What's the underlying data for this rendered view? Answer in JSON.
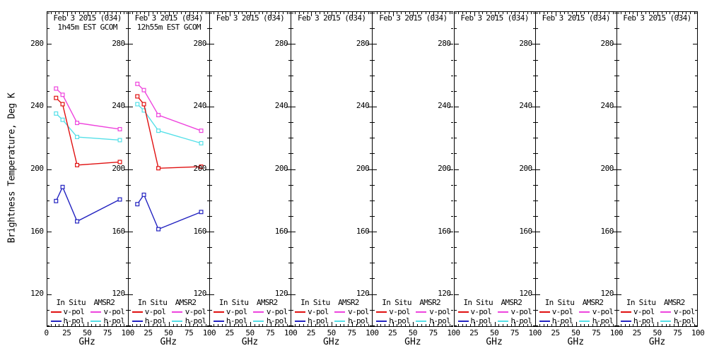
{
  "chart_data": {
    "type": "line",
    "xlabel": "GHz",
    "ylabel": "Brightness Temperature, Deg K",
    "x": [
      10.65,
      18.7,
      36.5,
      89
    ],
    "xlim": [
      0,
      100
    ],
    "ylim": [
      99,
      301
    ],
    "x_major_ticks": [
      0,
      25,
      50,
      75,
      100
    ],
    "x_minor_step": 5,
    "y_major_ticks": [
      280,
      240,
      200,
      160,
      120
    ],
    "y_minor_step": 10,
    "grid": false,
    "series_colors": {
      "insitu_v": "#e01010",
      "insitu_h": "#2222c0",
      "amsr2_v": "#ee44dd",
      "amsr2_h": "#55e0e8"
    },
    "legend": {
      "position": "bottom-inside-each-panel",
      "columns": [
        {
          "header": "In Situ",
          "entries": [
            {
              "label": "v-pol",
              "color_key": "insitu_v"
            },
            {
              "label": "h-pol",
              "color_key": "insitu_h"
            }
          ]
        },
        {
          "header": "AMSR2",
          "entries": [
            {
              "label": "v-pol",
              "color_key": "amsr2_v"
            },
            {
              "label": "h-pol",
              "color_key": "amsr2_h"
            }
          ]
        }
      ]
    },
    "panels": [
      {
        "title": "Feb 3 2015 (034)",
        "subtitle": "1h45m EST GCOM",
        "series": [
          {
            "name": "AMSR2 v-pol",
            "color_key": "amsr2_v",
            "values": [
              252,
              248,
              230,
              226
            ]
          },
          {
            "name": "AMSR2 h-pol",
            "color_key": "amsr2_h",
            "values": [
              236,
              232,
              221,
              219
            ]
          },
          {
            "name": "In Situ v-pol",
            "color_key": "insitu_v",
            "values": [
              246,
              242,
              203,
              205
            ]
          },
          {
            "name": "In Situ h-pol",
            "color_key": "insitu_h",
            "values": [
              180,
              189,
              167,
              181
            ]
          }
        ]
      },
      {
        "title": "Feb 3 2015 (034)",
        "subtitle": "12h55m EST GCOM",
        "series": [
          {
            "name": "AMSR2 v-pol",
            "color_key": "amsr2_v",
            "values": [
              255,
              251,
              235,
              225
            ]
          },
          {
            "name": "AMSR2 h-pol",
            "color_key": "amsr2_h",
            "values": [
              242,
              238,
              225,
              217
            ]
          },
          {
            "name": "In Situ v-pol",
            "color_key": "insitu_v",
            "values": [
              247,
              242,
              201,
              202
            ]
          },
          {
            "name": "In Situ h-pol",
            "color_key": "insitu_h",
            "values": [
              178,
              184,
              162,
              173
            ]
          }
        ]
      },
      {
        "title": "Feb 3 2015 (034)",
        "subtitle": "",
        "series": []
      },
      {
        "title": "Feb 3 2015 (034)",
        "subtitle": "",
        "series": []
      },
      {
        "title": "Feb 3 2015 (034)",
        "subtitle": "",
        "series": []
      },
      {
        "title": "Feb 3 2015 (034)",
        "subtitle": "",
        "series": []
      },
      {
        "title": "Feb 3 2015 (034)",
        "subtitle": "",
        "series": []
      },
      {
        "title": "Feb 3 2015 (034)",
        "subtitle": "",
        "series": []
      }
    ]
  }
}
